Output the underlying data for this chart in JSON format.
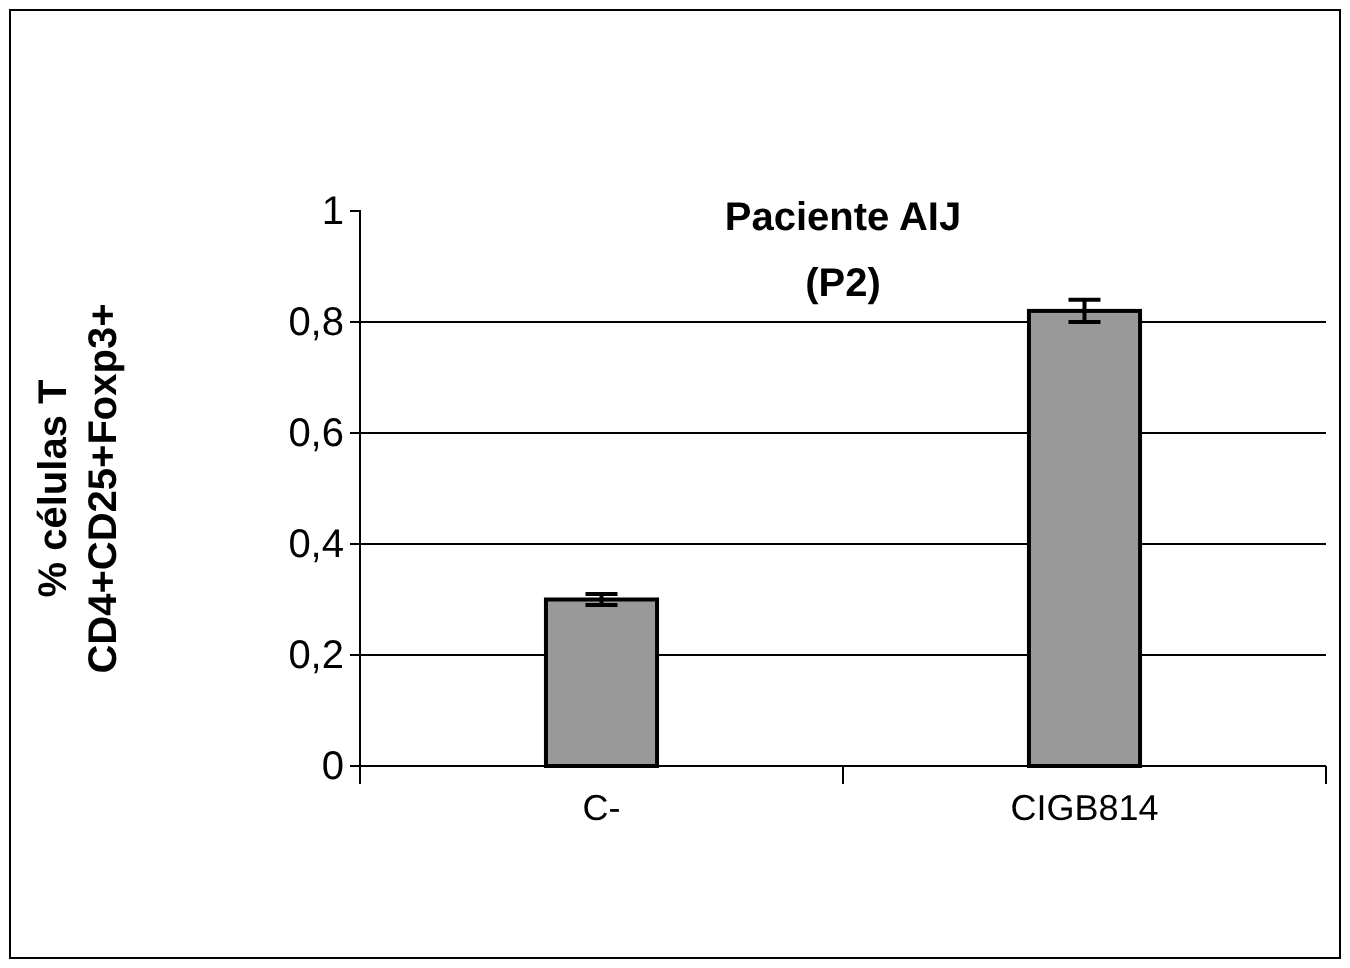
{
  "chart_data": {
    "type": "bar",
    "title": "Paciente AIJ\n(P2)",
    "ylabel": "% células T\nCD4+CD25+Foxp3+",
    "categories": [
      "C-",
      "CIGB814"
    ],
    "values": [
      0.3,
      0.82
    ],
    "errors": [
      0.01,
      0.02
    ],
    "color": "#999999",
    "ylim": [
      0,
      1
    ],
    "yticks": [
      {
        "value": 0,
        "label": "0"
      },
      {
        "value": 0.2,
        "label": "0,2"
      },
      {
        "value": 0.4,
        "label": "0,4"
      },
      {
        "value": 0.6,
        "label": "0,6"
      },
      {
        "value": 0.8,
        "label": "0,8"
      },
      {
        "value": 1,
        "label": "1"
      }
    ],
    "grid": "y"
  }
}
